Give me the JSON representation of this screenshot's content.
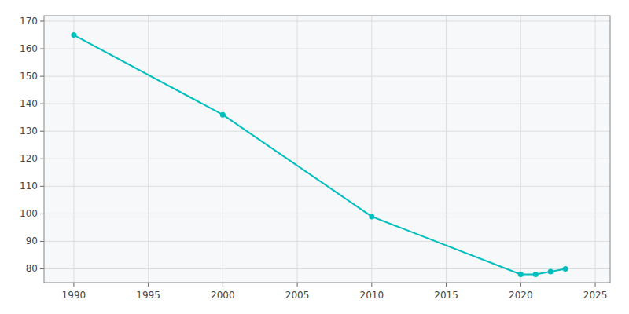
{
  "chart_data": {
    "type": "line",
    "x": [
      1990,
      2000,
      2010,
      2020,
      2021,
      2022,
      2023
    ],
    "values": [
      165,
      136,
      99,
      78,
      78,
      79,
      80
    ],
    "color": "#00BEBE",
    "marker": "circle",
    "xlim": [
      1988,
      2026
    ],
    "ylim": [
      75,
      172
    ],
    "xticks": [
      1990,
      1995,
      2000,
      2005,
      2010,
      2015,
      2020,
      2025
    ],
    "yticks": [
      80,
      90,
      100,
      110,
      120,
      130,
      140,
      150,
      160,
      170
    ],
    "grid": true
  }
}
